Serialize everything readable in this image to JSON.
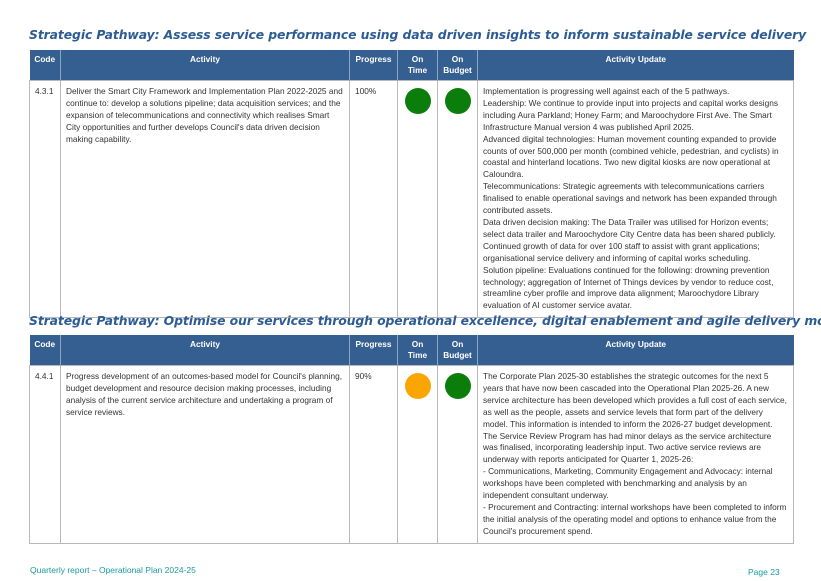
{
  "colors": {
    "header_bg": "#355f91",
    "title": "#2d5c95",
    "status_green": "#0a7d0a",
    "status_amber": "#fba500",
    "footer": "#1a9b9b"
  },
  "columns": {
    "code": "Code",
    "activity": "Activity",
    "progress": "Progress",
    "on_time": "On Time",
    "on_budget": "On Budget",
    "update": "Activity Update"
  },
  "sections": [
    {
      "title": "Strategic Pathway: Assess service performance using data driven insights to inform sustainable service delivery",
      "row": {
        "code": "4.3.1",
        "activity": "Deliver the Smart City Framework and Implementation Plan 2022-2025 and continue to: develop a solutions pipeline; data acquisition services; and the expansion of telecommunications and connectivity which realises Smart City opportunities and further develops Council's data driven decision making capability.",
        "progress": "100%",
        "on_time": "green",
        "on_budget": "green",
        "update": [
          "Implementation is progressing well against each of the 5 pathways.",
          "Leadership: We continue to provide input into projects and capital works designs including Aura Parkland; Honey Farm; and Maroochydore First Ave. The Smart Infrastructure Manual version 4 was published April 2025.",
          "Advanced digital technologies: Human movement counting expanded to provide counts of over 500,000 per month (combined vehicle, pedestrian, and cyclists) in coastal and hinterland locations. Two new digital kiosks are now operational at Caloundra.",
          "Telecommunications: Strategic agreements with telecommunications carriers finalised to enable operational savings and network has been expanded through contributed assets.",
          "Data driven decision making: The Data Trailer was utilised for Horizon events; select data trailer and Maroochydore City Centre data has been shared publicly. Continued growth of data for over 100 staff to assist with grant applications; organisational service delivery and informing of capital works scheduling.",
          "Solution pipeline: Evaluations continued for the following: drowning prevention technology; aggregation of Internet of Things devices by vendor to reduce cost, streamline cyber profile and improve data alignment; Maroochydore Library evaluation of AI customer service avatar."
        ]
      }
    },
    {
      "title": "Strategic Pathway: Optimise our services through operational excellence, digital enablement and agile delivery models",
      "row": {
        "code": "4.4.1",
        "activity": "Progress development of an outcomes-based model for Council's planning, budget development and resource decision making processes, including analysis of the current service architecture and undertaking a program of service reviews.",
        "progress": "90%",
        "on_time": "amber",
        "on_budget": "green",
        "update": [
          "The Corporate Plan 2025-30 establishes the strategic outcomes for the next 5 years that have now been cascaded into the Operational Plan 2025-26. A new service architecture has been developed which provides a full cost of each service, as well as the people, assets and service levels that form part of the delivery model. This information is intended to inform the 2026-27 budget development.",
          "The Service Review Program has had minor delays as the service architecture was finalised, incorporating leadership input. Two active service reviews are underway with reports anticipated for Quarter 1, 2025-26:",
          "- Communications, Marketing, Community Engagement and Advocacy: internal workshops have been completed with benchmarking and analysis by an independent consultant underway.",
          "- Procurement and Contracting: internal workshops have been completed to inform the initial analysis of the operating model and options to enhance value from the Council's procurement spend."
        ]
      }
    }
  ],
  "footer": {
    "left": "Quarterly report – Operational Plan 2024-25",
    "page": "Page 23"
  }
}
